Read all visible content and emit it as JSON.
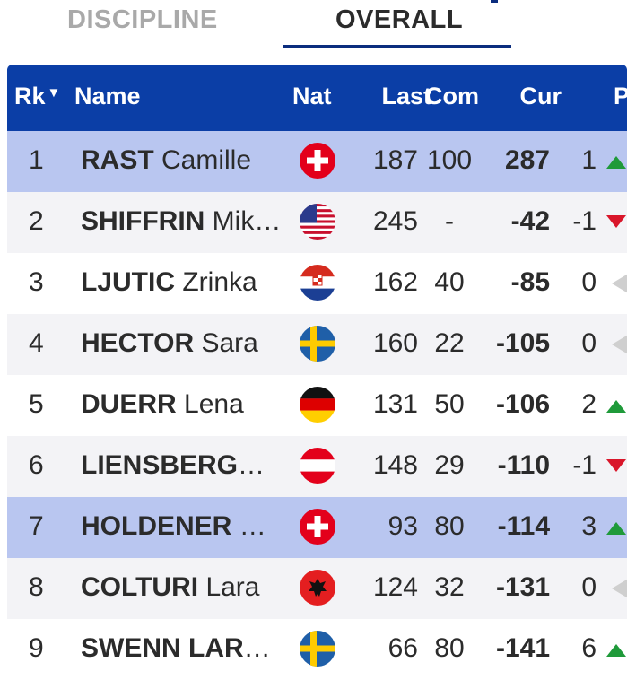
{
  "tabs": {
    "discipline": "DISCIPLINE",
    "overall": "OVERALL"
  },
  "columns": {
    "rk": "Rk",
    "sort_indicator": "▼",
    "name": "Name",
    "nat": "Nat",
    "last": "Last",
    "com": "Com",
    "cur": "Cur",
    "next": "P"
  },
  "rows": [
    {
      "rank": "1",
      "surname": "RAST",
      "given": "Camille",
      "nat": "SUI",
      "last": "187",
      "com": "100",
      "cur": "287",
      "move": "1",
      "trend": "up",
      "highlight": true
    },
    {
      "rank": "2",
      "surname": "SHIFFRIN",
      "given": "Mik…",
      "nat": "USA",
      "last": "245",
      "com": "-",
      "cur": "-42",
      "move": "-1",
      "trend": "down",
      "highlight": false
    },
    {
      "rank": "3",
      "surname": "LJUTIC",
      "given": "Zrinka",
      "nat": "CRO",
      "last": "162",
      "com": "40",
      "cur": "-85",
      "move": "0",
      "trend": "same",
      "highlight": false
    },
    {
      "rank": "4",
      "surname": "HECTOR",
      "given": "Sara",
      "nat": "SWE",
      "last": "160",
      "com": "22",
      "cur": "-105",
      "move": "0",
      "trend": "same",
      "highlight": false
    },
    {
      "rank": "5",
      "surname": "DUERR",
      "given": "Lena",
      "nat": "GER",
      "last": "131",
      "com": "50",
      "cur": "-106",
      "move": "2",
      "trend": "up",
      "highlight": false
    },
    {
      "rank": "6",
      "surname": "LIENSBERGE…",
      "given": "",
      "nat": "AUT",
      "last": "148",
      "com": "29",
      "cur": "-110",
      "move": "-1",
      "trend": "down",
      "highlight": false
    },
    {
      "rank": "7",
      "surname": "HOLDENER",
      "given": "W…",
      "nat": "SUI",
      "last": "93",
      "com": "80",
      "cur": "-114",
      "move": "3",
      "trend": "up",
      "highlight": true
    },
    {
      "rank": "8",
      "surname": "COLTURI",
      "given": "Lara",
      "nat": "ALB",
      "last": "124",
      "com": "32",
      "cur": "-131",
      "move": "0",
      "trend": "same",
      "highlight": false
    },
    {
      "rank": "9",
      "surname": "SWENN LARS…",
      "given": "",
      "nat": "SWE",
      "last": "66",
      "com": "80",
      "cur": "-141",
      "move": "6",
      "trend": "up",
      "highlight": false
    }
  ],
  "colors": {
    "header": "#0b3ea6",
    "highlight_row": "#b9c6f0",
    "up": "#1f9a3a",
    "down": "#d9162a",
    "same": "#cfcfcf"
  }
}
